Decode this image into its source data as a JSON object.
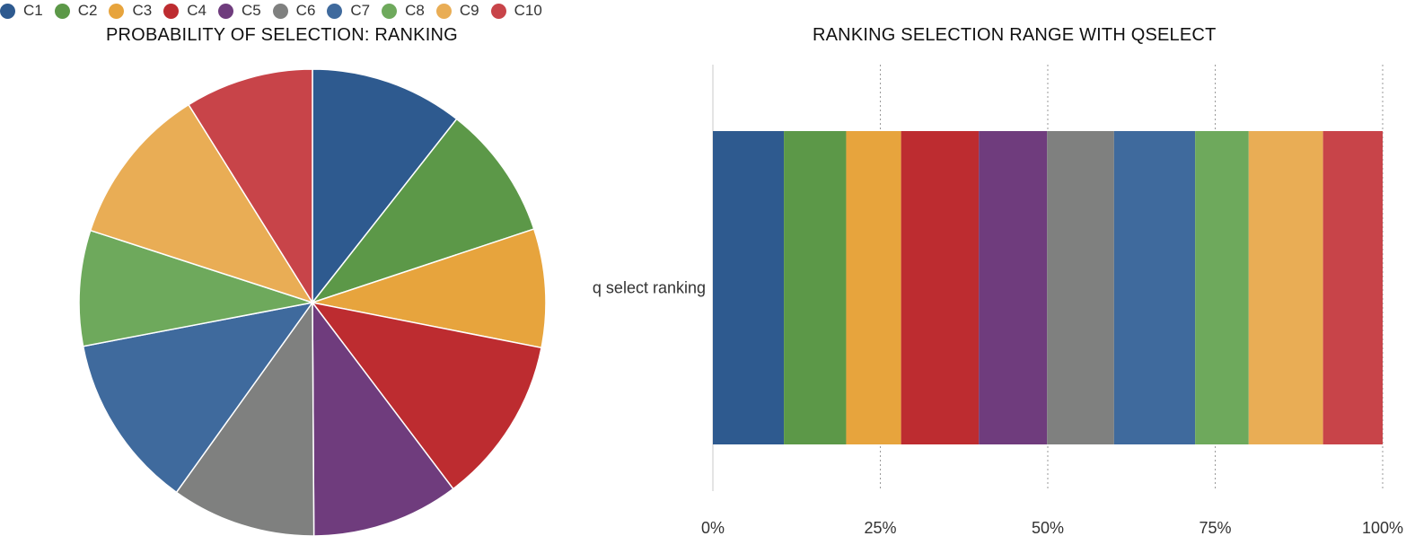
{
  "legend": {
    "items": [
      {
        "label": "C1",
        "color": "#2e5a8f"
      },
      {
        "label": "C2",
        "color": "#5c9848"
      },
      {
        "label": "C3",
        "color": "#e7a43d"
      },
      {
        "label": "C4",
        "color": "#bd2c30"
      },
      {
        "label": "C5",
        "color": "#6f3c7d"
      },
      {
        "label": "C6",
        "color": "#7f807f"
      },
      {
        "label": "C7",
        "color": "#3f6a9d"
      },
      {
        "label": "C8",
        "color": "#6ea95c"
      },
      {
        "label": "C9",
        "color": "#e9ad55"
      },
      {
        "label": "C10",
        "color": "#c84449"
      }
    ]
  },
  "chart_data": [
    {
      "type": "pie",
      "title": "PROBABILITY OF SELECTION: RANKING",
      "categories": [
        "C1",
        "C2",
        "C3",
        "C4",
        "C5",
        "C6",
        "C7",
        "C8",
        "C9",
        "C10"
      ],
      "values": [
        10.6,
        9.3,
        8.2,
        11.6,
        10.2,
        10.0,
        12.1,
        8.0,
        11.1,
        8.9
      ],
      "colors": [
        "#2e5a8f",
        "#5c9848",
        "#e7a43d",
        "#bd2c30",
        "#6f3c7d",
        "#7f807f",
        "#3f6a9d",
        "#6ea95c",
        "#e9ad55",
        "#c84449"
      ]
    },
    {
      "type": "bar",
      "orientation": "horizontal-stacked",
      "title": "RANKING SELECTION RANGE WITH QSELECT",
      "categories": [
        "q select ranking"
      ],
      "series": [
        {
          "name": "C1",
          "values": [
            10.6
          ],
          "color": "#2e5a8f"
        },
        {
          "name": "C2",
          "values": [
            9.3
          ],
          "color": "#5c9848"
        },
        {
          "name": "C3",
          "values": [
            8.2
          ],
          "color": "#e7a43d"
        },
        {
          "name": "C4",
          "values": [
            11.6
          ],
          "color": "#bd2c30"
        },
        {
          "name": "C5",
          "values": [
            10.2
          ],
          "color": "#6f3c7d"
        },
        {
          "name": "C6",
          "values": [
            10.0
          ],
          "color": "#7f807f"
        },
        {
          "name": "C7",
          "values": [
            12.1
          ],
          "color": "#3f6a9d"
        },
        {
          "name": "C8",
          "values": [
            8.0
          ],
          "color": "#6ea95c"
        },
        {
          "name": "C9",
          "values": [
            11.1
          ],
          "color": "#e9ad55"
        },
        {
          "name": "C10",
          "values": [
            8.9
          ],
          "color": "#c84449"
        }
      ],
      "xlim": [
        0,
        100
      ],
      "xticks": [
        "0%",
        "25%",
        "50%",
        "75%",
        "100%"
      ],
      "grid": true
    }
  ]
}
